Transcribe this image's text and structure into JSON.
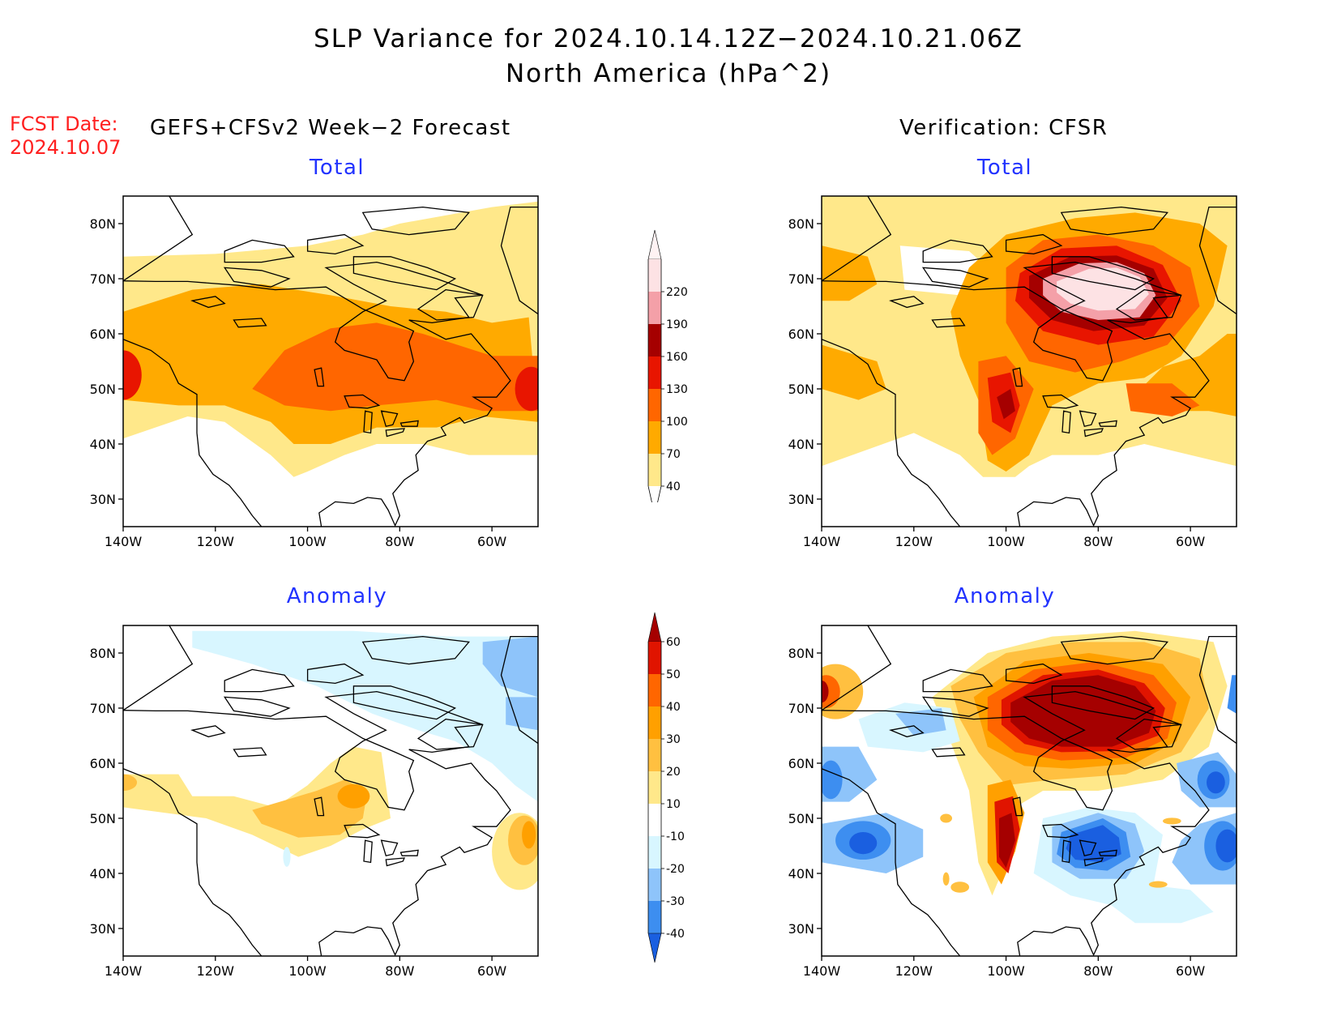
{
  "header": {
    "title_line1": "SLP Variance for 2024.10.14.12Z−2024.10.21.06Z",
    "title_line2": "North America (hPa^2)",
    "fcst_label": "FCST Date:",
    "fcst_date": "2024.10.07",
    "left_heading": "GEFS+CFSv2 Week−2 Forecast",
    "right_heading": "Verification: CFSR"
  },
  "panels": {
    "fc_total": {
      "title": "Total"
    },
    "vf_total": {
      "title": "Total"
    },
    "fc_anom": {
      "title": "Anomaly"
    },
    "vf_anom": {
      "title": "Anomaly"
    }
  },
  "axes": {
    "lat_ticks": [
      "80N",
      "70N",
      "60N",
      "50N",
      "40N",
      "30N"
    ],
    "lat_values": [
      80,
      70,
      60,
      50,
      40,
      30
    ],
    "lon_ticks": [
      "140W",
      "120W",
      "100W",
      "80W",
      "60W"
    ],
    "lon_values": [
      -140,
      -120,
      -100,
      -80,
      -60
    ],
    "lon_range": [
      -140,
      -50
    ],
    "lat_range": [
      25,
      85
    ]
  },
  "colorbars": {
    "total": {
      "levels": [
        "40",
        "70",
        "100",
        "130",
        "160",
        "190",
        "220"
      ],
      "colors": [
        "#ffe88a",
        "#ffaa00",
        "#ff6600",
        "#e81500",
        "#a50000",
        "#f4a0a8",
        "#fde2e4"
      ]
    },
    "anomaly": {
      "levels": [
        "-40",
        "-30",
        "-20",
        "-10",
        "10",
        "20",
        "30",
        "40",
        "50",
        "60"
      ],
      "colors": [
        "#1a5fe0",
        "#3d8ef0",
        "#8ec4fa",
        "#d8f6ff",
        "#ffffff",
        "#ffe88a",
        "#ffc040",
        "#ffa000",
        "#ff6600",
        "#e01400",
        "#a50000"
      ]
    }
  },
  "colors": {
    "title_text": "#000000",
    "fcst_text": "#ff2020",
    "panel_title": "#2233ff"
  }
}
